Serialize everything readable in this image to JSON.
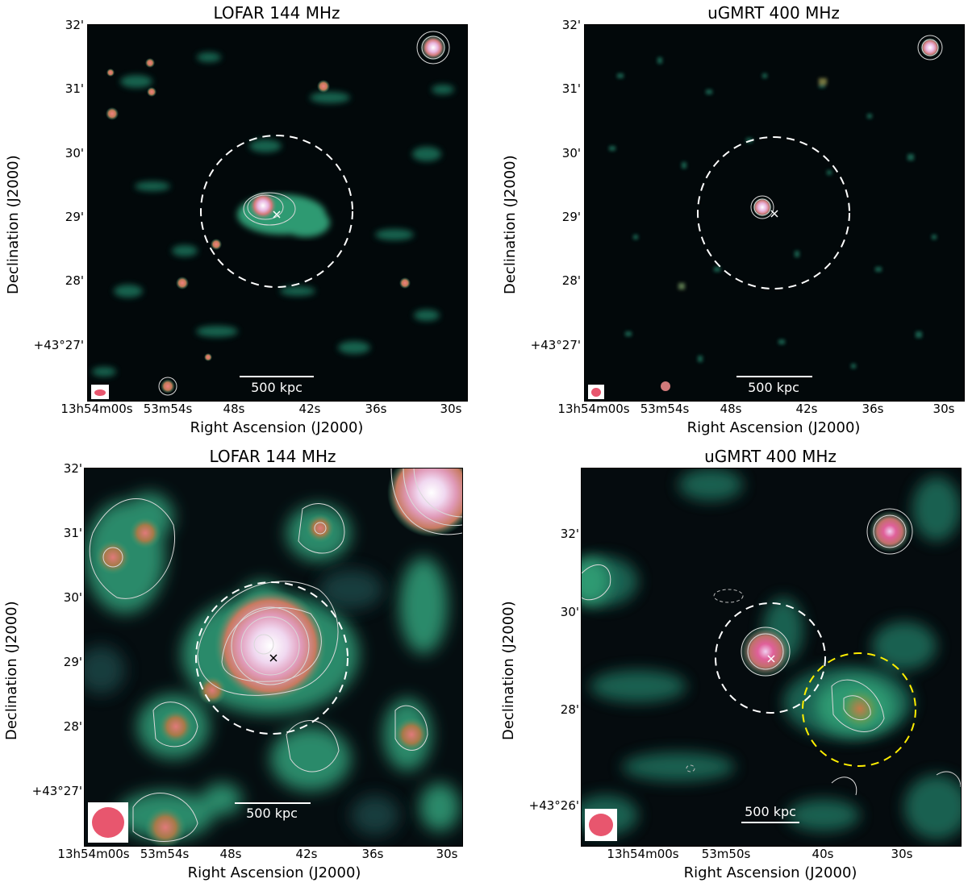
{
  "colors": {
    "background": "#000000",
    "map_low": "#1a3a3a",
    "map_mid": "#2e9a72",
    "map_high": "#e07a7a",
    "map_peak": "#ffffff",
    "contour": "#d9d9d9",
    "beam": "#e8566e",
    "cluster_circle": "#ffffff",
    "secondary_circle": "#ffee00"
  },
  "common": {
    "ylabel": "Declination (J2000)",
    "xlabel": "Right Ascension (J2000)",
    "scale_label": "500 kpc"
  },
  "panels": [
    {
      "title": "LOFAR 144 MHz",
      "yticks": [
        "32'",
        "31'",
        "30'",
        "29'",
        "28'",
        "+43°27'"
      ],
      "xticks": [
        "13h54m00s",
        "53m54s",
        "48s",
        "42s",
        "36s",
        "30s"
      ]
    },
    {
      "title": "uGMRT 400 MHz",
      "yticks": [
        "32'",
        "31'",
        "30'",
        "29'",
        "28'",
        "+43°27'"
      ],
      "xticks": [
        "13h54m00s",
        "53m54s",
        "48s",
        "42s",
        "36s",
        "30s"
      ]
    },
    {
      "title": "LOFAR 144 MHz",
      "yticks": [
        "32'",
        "31'",
        "30'",
        "29'",
        "28'",
        "+43°27'"
      ],
      "xticks": [
        "13h54m00s",
        "53m54s",
        "48s",
        "42s",
        "36s",
        "30s"
      ]
    },
    {
      "title": "uGMRT 400 MHz",
      "yticks": [
        "32'",
        "30'",
        "28'",
        "+43°26'"
      ],
      "xticks": [
        "13h54m00s",
        "53m50s",
        "40s",
        "30s"
      ]
    }
  ]
}
